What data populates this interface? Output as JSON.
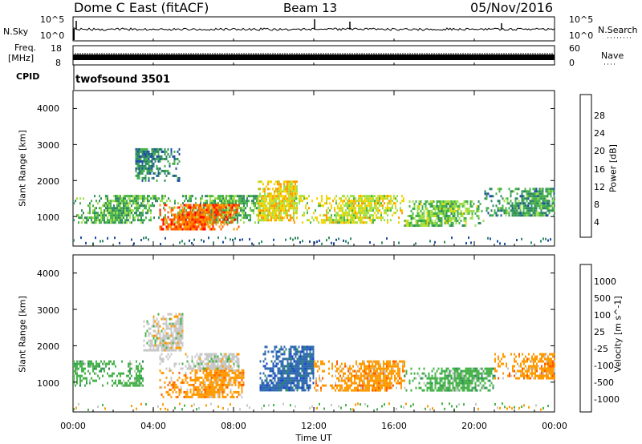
{
  "header": {
    "title": "Dome C East (fitACF)",
    "beam": "Beam 13",
    "date": "05/Nov/2016"
  },
  "sky_panel": {
    "left_label": "N.Sky",
    "left_ticks": [
      "10^5",
      "10^0"
    ],
    "right_label": "N.Search",
    "right_ticks": [
      "10^5",
      "10^0"
    ]
  },
  "freq_panel": {
    "left_label_1": "Freq.",
    "left_label_2": "[MHz]",
    "left_ticks": [
      "18",
      "8"
    ],
    "right_label": "Nave",
    "right_ticks": [
      "60",
      "0"
    ]
  },
  "cpid": {
    "label": "CPID",
    "value": "twofsound 3501"
  },
  "x_axis": {
    "label": "Time UT",
    "ticks": [
      "00:00",
      "04:00",
      "08:00",
      "12:00",
      "16:00",
      "20:00",
      "00:00"
    ]
  },
  "chart_data": [
    {
      "type": "heatmap",
      "name": "power",
      "xlabel": "Time UT",
      "ylabel": "Slant Range [km]",
      "xlim": [
        0,
        24
      ],
      "ylim": [
        180,
        4500
      ],
      "yticks": [
        "1000",
        "2000",
        "3000",
        "4000"
      ],
      "colorbar_label": "Power [dB]",
      "colorbar_ticks": [
        "28",
        "24",
        "20",
        "16",
        "12",
        "8",
        "4"
      ],
      "colorbar_colors": [
        "#ff0000",
        "#ff5a00",
        "#ff9a00",
        "#f2d600",
        "#9fe04a",
        "#46b24a",
        "#2f8a62",
        "#1d4fa3",
        "#1a1aff"
      ],
      "colorbar_range": [
        0,
        32
      ],
      "echo_regions": [
        {
          "t_start": 0.0,
          "t_end": 9.3,
          "range_low": 850,
          "range_high": 1600,
          "value": 12
        },
        {
          "t_start": 4.3,
          "t_end": 8.3,
          "range_low": 650,
          "range_high": 1350,
          "value": 27
        },
        {
          "t_start": 3.1,
          "t_end": 5.3,
          "range_low": 2000,
          "range_high": 2900,
          "value": 8
        },
        {
          "t_start": 9.2,
          "t_end": 11.2,
          "range_low": 900,
          "range_high": 2000,
          "value": 20
        },
        {
          "t_start": 11.0,
          "t_end": 16.5,
          "range_low": 800,
          "range_high": 1600,
          "value": 18
        },
        {
          "t_start": 16.5,
          "t_end": 20.5,
          "range_low": 750,
          "range_high": 1450,
          "value": 14
        },
        {
          "t_start": 20.5,
          "t_end": 24.0,
          "range_low": 1000,
          "range_high": 1800,
          "value": 10
        }
      ]
    },
    {
      "type": "heatmap",
      "name": "velocity",
      "xlabel": "Time UT",
      "ylabel": "Slant Range [km]",
      "xlim": [
        0,
        24
      ],
      "ylim": [
        180,
        4500
      ],
      "yticks": [
        "1000",
        "2000",
        "3000",
        "4000"
      ],
      "colorbar_label": "Velocity [m s^-1]",
      "colorbar_ticks": [
        "1000",
        "500",
        "100",
        "25",
        "-25",
        "-100",
        "-500",
        "-1000"
      ],
      "colorbar_colors": [
        "#1a3fd0",
        "#2f6ab0",
        "#2f8a62",
        "#46b24a",
        "#c8c8c8",
        "#ff9a00",
        "#ff5a00",
        "#ff0000"
      ],
      "echo_regions": [
        {
          "t_start": 0.0,
          "t_end": 3.5,
          "range_low": 900,
          "range_high": 1600,
          "value": "100"
        },
        {
          "t_start": 3.5,
          "t_end": 5.5,
          "range_low": 1900,
          "range_high": 2900,
          "value": "25"
        },
        {
          "t_start": 4.3,
          "t_end": 8.5,
          "range_low": 600,
          "range_high": 1350,
          "value": "-100"
        },
        {
          "t_start": 4.3,
          "t_end": 8.3,
          "range_low": 1400,
          "range_high": 1800,
          "value": "25"
        },
        {
          "t_start": 9.3,
          "t_end": 12.0,
          "range_low": 800,
          "range_high": 2000,
          "value": "500"
        },
        {
          "t_start": 12.0,
          "t_end": 16.5,
          "range_low": 800,
          "range_high": 1600,
          "value": "-100"
        },
        {
          "t_start": 16.5,
          "t_end": 21.0,
          "range_low": 750,
          "range_high": 1400,
          "value": "100"
        },
        {
          "t_start": 21.0,
          "t_end": 24.0,
          "range_low": 1100,
          "range_high": 1800,
          "value": "-100"
        }
      ]
    }
  ]
}
